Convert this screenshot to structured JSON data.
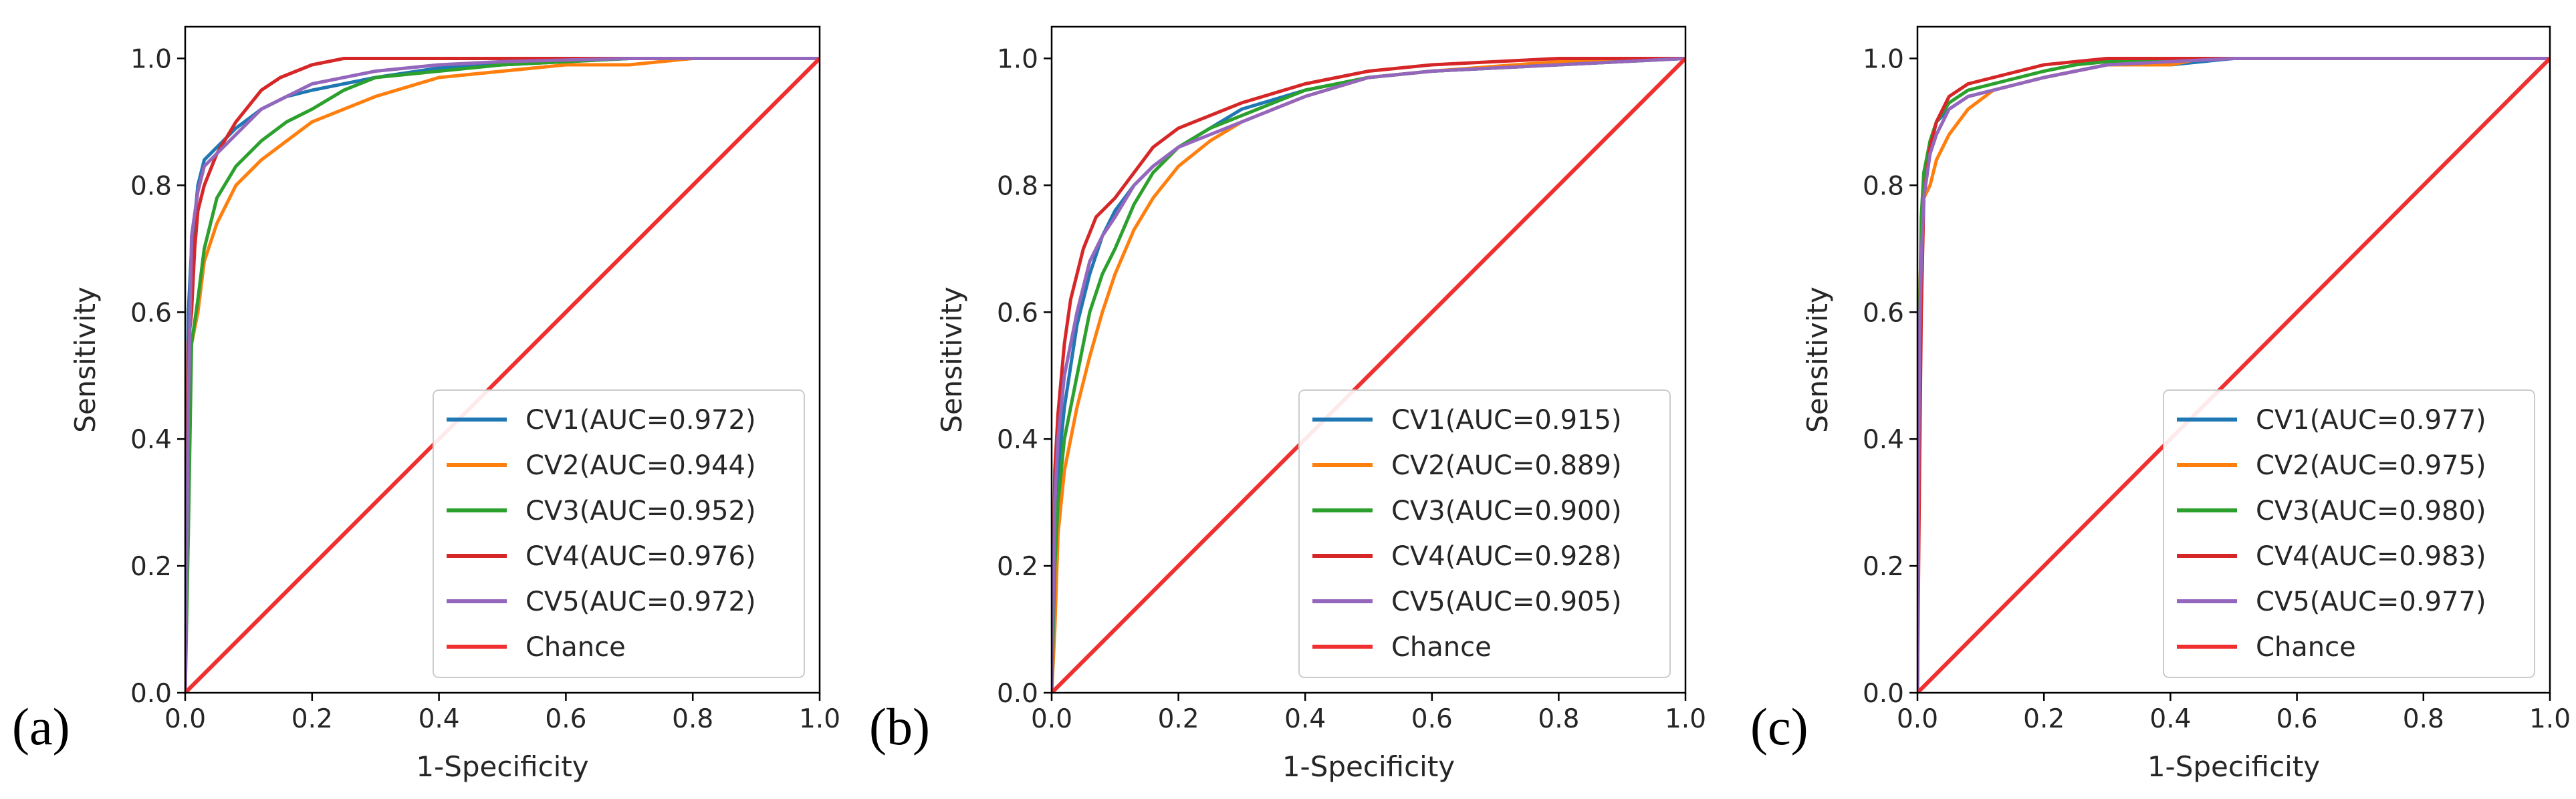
{
  "colors": {
    "CV1": "#1f77b4",
    "CV2": "#ff7f0e",
    "CV3": "#2ca02c",
    "CV4": "#d62728",
    "CV5": "#9467bd",
    "Chance": "#f03030"
  },
  "chart_data": [
    {
      "panel_label": "(a)",
      "type": "line",
      "xlabel": "1-Specificity",
      "ylabel": "Sensitivity",
      "xlim": [
        0,
        1
      ],
      "ylim": [
        0,
        1.05
      ],
      "xticks": [
        "0.0",
        "0.2",
        "0.4",
        "0.6",
        "0.8",
        "1.0"
      ],
      "yticks": [
        "0.0",
        "0.2",
        "0.4",
        "0.6",
        "0.8",
        "1.0"
      ],
      "legend_position": "lower-right",
      "series": [
        {
          "name": "CV1(AUC=0.972)",
          "color_key": "CV1",
          "x": [
            0,
            0.005,
            0.01,
            0.02,
            0.03,
            0.05,
            0.08,
            0.12,
            0.16,
            0.2,
            0.25,
            0.3,
            0.4,
            0.5,
            0.7,
            1
          ],
          "y": [
            0,
            0.6,
            0.7,
            0.8,
            0.84,
            0.86,
            0.89,
            0.92,
            0.94,
            0.95,
            0.96,
            0.97,
            0.985,
            0.99,
            1,
            1
          ]
        },
        {
          "name": "CV2(AUC=0.944)",
          "color_key": "CV2",
          "x": [
            0,
            0.005,
            0.01,
            0.02,
            0.03,
            0.05,
            0.08,
            0.12,
            0.16,
            0.2,
            0.25,
            0.3,
            0.4,
            0.5,
            0.6,
            0.7,
            0.8,
            1
          ],
          "y": [
            0,
            0.45,
            0.55,
            0.6,
            0.68,
            0.74,
            0.8,
            0.84,
            0.87,
            0.9,
            0.92,
            0.94,
            0.97,
            0.98,
            0.99,
            0.99,
            1,
            1
          ]
        },
        {
          "name": "CV3(AUC=0.952)",
          "color_key": "CV3",
          "x": [
            0,
            0.005,
            0.01,
            0.02,
            0.03,
            0.05,
            0.08,
            0.12,
            0.16,
            0.2,
            0.25,
            0.3,
            0.4,
            0.5,
            0.7,
            1
          ],
          "y": [
            0,
            0.25,
            0.55,
            0.62,
            0.7,
            0.78,
            0.83,
            0.87,
            0.9,
            0.92,
            0.95,
            0.97,
            0.98,
            0.99,
            1,
            1
          ]
        },
        {
          "name": "CV4(AUC=0.976)",
          "color_key": "CV4",
          "x": [
            0,
            0.005,
            0.01,
            0.015,
            0.02,
            0.03,
            0.05,
            0.08,
            0.12,
            0.15,
            0.2,
            0.25,
            0.3,
            0.4,
            1
          ],
          "y": [
            0,
            0.55,
            0.6,
            0.7,
            0.76,
            0.8,
            0.85,
            0.9,
            0.95,
            0.97,
            0.99,
            1,
            1,
            1,
            1
          ]
        },
        {
          "name": "CV5(AUC=0.972)",
          "color_key": "CV5",
          "x": [
            0,
            0.005,
            0.01,
            0.02,
            0.03,
            0.05,
            0.08,
            0.12,
            0.16,
            0.2,
            0.3,
            0.4,
            0.5,
            0.7,
            1
          ],
          "y": [
            0,
            0.45,
            0.72,
            0.79,
            0.83,
            0.85,
            0.88,
            0.92,
            0.94,
            0.96,
            0.98,
            0.99,
            0.995,
            1,
            1
          ]
        },
        {
          "name": "Chance",
          "color_key": "Chance",
          "x": [
            0,
            1
          ],
          "y": [
            0,
            1
          ]
        }
      ]
    },
    {
      "panel_label": "(b)",
      "type": "line",
      "xlabel": "1-Specificity",
      "ylabel": "Sensitivity",
      "xlim": [
        0,
        1
      ],
      "ylim": [
        0,
        1.05
      ],
      "xticks": [
        "0.0",
        "0.2",
        "0.4",
        "0.6",
        "0.8",
        "1.0"
      ],
      "yticks": [
        "0.0",
        "0.2",
        "0.4",
        "0.6",
        "0.8",
        "1.0"
      ],
      "legend_position": "lower-right",
      "series": [
        {
          "name": "CV1(AUC=0.915)",
          "color_key": "CV1",
          "x": [
            0,
            0.005,
            0.01,
            0.02,
            0.04,
            0.06,
            0.08,
            0.1,
            0.13,
            0.16,
            0.2,
            0.25,
            0.3,
            0.4,
            0.5,
            0.6,
            0.8,
            1
          ],
          "y": [
            0,
            0.2,
            0.35,
            0.45,
            0.58,
            0.66,
            0.72,
            0.76,
            0.8,
            0.83,
            0.86,
            0.89,
            0.92,
            0.95,
            0.97,
            0.98,
            0.99,
            1
          ]
        },
        {
          "name": "CV2(AUC=0.889)",
          "color_key": "CV2",
          "x": [
            0,
            0.005,
            0.01,
            0.02,
            0.04,
            0.06,
            0.08,
            0.1,
            0.13,
            0.16,
            0.2,
            0.25,
            0.3,
            0.4,
            0.5,
            0.6,
            0.8,
            1
          ],
          "y": [
            0,
            0.1,
            0.25,
            0.35,
            0.45,
            0.53,
            0.6,
            0.66,
            0.73,
            0.78,
            0.83,
            0.87,
            0.9,
            0.94,
            0.97,
            0.98,
            0.995,
            1
          ]
        },
        {
          "name": "CV3(AUC=0.900)",
          "color_key": "CV3",
          "x": [
            0,
            0.005,
            0.01,
            0.02,
            0.04,
            0.06,
            0.08,
            0.1,
            0.13,
            0.16,
            0.2,
            0.25,
            0.3,
            0.4,
            0.5,
            0.6,
            0.8,
            1
          ],
          "y": [
            0,
            0.2,
            0.3,
            0.4,
            0.5,
            0.6,
            0.66,
            0.7,
            0.77,
            0.82,
            0.86,
            0.89,
            0.91,
            0.95,
            0.97,
            0.98,
            0.99,
            1
          ]
        },
        {
          "name": "CV4(AUC=0.928)",
          "color_key": "CV4",
          "x": [
            0,
            0.005,
            0.01,
            0.02,
            0.03,
            0.05,
            0.07,
            0.1,
            0.13,
            0.16,
            0.2,
            0.25,
            0.3,
            0.4,
            0.5,
            0.6,
            0.8,
            1
          ],
          "y": [
            0,
            0.35,
            0.44,
            0.55,
            0.62,
            0.7,
            0.75,
            0.78,
            0.82,
            0.86,
            0.89,
            0.91,
            0.93,
            0.96,
            0.98,
            0.99,
            1,
            1
          ]
        },
        {
          "name": "CV5(AUC=0.905)",
          "color_key": "CV5",
          "x": [
            0,
            0.005,
            0.01,
            0.02,
            0.04,
            0.06,
            0.08,
            0.1,
            0.13,
            0.16,
            0.2,
            0.25,
            0.3,
            0.4,
            0.5,
            0.6,
            0.8,
            1
          ],
          "y": [
            0,
            0.3,
            0.4,
            0.5,
            0.6,
            0.68,
            0.72,
            0.75,
            0.8,
            0.83,
            0.86,
            0.88,
            0.9,
            0.94,
            0.97,
            0.98,
            0.99,
            1
          ]
        },
        {
          "name": "Chance",
          "color_key": "Chance",
          "x": [
            0,
            1
          ],
          "y": [
            0,
            1
          ]
        }
      ]
    },
    {
      "panel_label": "(c)",
      "type": "line",
      "xlabel": "1-Specificity",
      "ylabel": "Sensitivity",
      "xlim": [
        0,
        1
      ],
      "ylim": [
        0,
        1.05
      ],
      "xticks": [
        "0.0",
        "0.2",
        "0.4",
        "0.6",
        "0.8",
        "1.0"
      ],
      "yticks": [
        "0.0",
        "0.2",
        "0.4",
        "0.6",
        "0.8",
        "1.0"
      ],
      "legend_position": "lower-right",
      "series": [
        {
          "name": "CV1(AUC=0.977)",
          "color_key": "CV1",
          "x": [
            0,
            0.003,
            0.006,
            0.01,
            0.02,
            0.03,
            0.05,
            0.08,
            0.12,
            0.16,
            0.2,
            0.25,
            0.3,
            0.4,
            0.5,
            1
          ],
          "y": [
            0,
            0.55,
            0.7,
            0.8,
            0.86,
            0.9,
            0.92,
            0.94,
            0.95,
            0.96,
            0.97,
            0.98,
            0.99,
            0.99,
            1,
            1
          ]
        },
        {
          "name": "CV2(AUC=0.975)",
          "color_key": "CV2",
          "x": [
            0,
            0.003,
            0.006,
            0.01,
            0.02,
            0.03,
            0.05,
            0.08,
            0.12,
            0.16,
            0.2,
            0.25,
            0.3,
            0.4,
            0.45,
            1
          ],
          "y": [
            0,
            0.6,
            0.72,
            0.78,
            0.8,
            0.84,
            0.88,
            0.92,
            0.95,
            0.96,
            0.97,
            0.98,
            0.99,
            0.99,
            1,
            1
          ]
        },
        {
          "name": "CV3(AUC=0.980)",
          "color_key": "CV3",
          "x": [
            0,
            0.003,
            0.006,
            0.01,
            0.02,
            0.03,
            0.05,
            0.08,
            0.12,
            0.16,
            0.2,
            0.25,
            0.3,
            0.4,
            1
          ],
          "y": [
            0,
            0.55,
            0.75,
            0.82,
            0.87,
            0.9,
            0.93,
            0.95,
            0.96,
            0.97,
            0.98,
            0.99,
            0.995,
            1,
            1
          ]
        },
        {
          "name": "CV4(AUC=0.983)",
          "color_key": "CV4",
          "x": [
            0,
            0.003,
            0.006,
            0.01,
            0.02,
            0.03,
            0.05,
            0.08,
            0.12,
            0.16,
            0.2,
            0.25,
            0.3,
            1
          ],
          "y": [
            0,
            0.32,
            0.6,
            0.78,
            0.86,
            0.9,
            0.94,
            0.96,
            0.97,
            0.98,
            0.99,
            0.995,
            1,
            1
          ]
        },
        {
          "name": "CV5(AUC=0.977)",
          "color_key": "CV5",
          "x": [
            0,
            0.003,
            0.006,
            0.01,
            0.02,
            0.03,
            0.05,
            0.08,
            0.12,
            0.16,
            0.2,
            0.25,
            0.3,
            0.4,
            0.5,
            1
          ],
          "y": [
            0,
            0.55,
            0.68,
            0.78,
            0.85,
            0.88,
            0.92,
            0.94,
            0.95,
            0.96,
            0.97,
            0.98,
            0.99,
            0.995,
            1,
            1
          ]
        },
        {
          "name": "Chance",
          "color_key": "Chance",
          "x": [
            0,
            1
          ],
          "y": [
            0,
            1
          ]
        }
      ]
    }
  ]
}
